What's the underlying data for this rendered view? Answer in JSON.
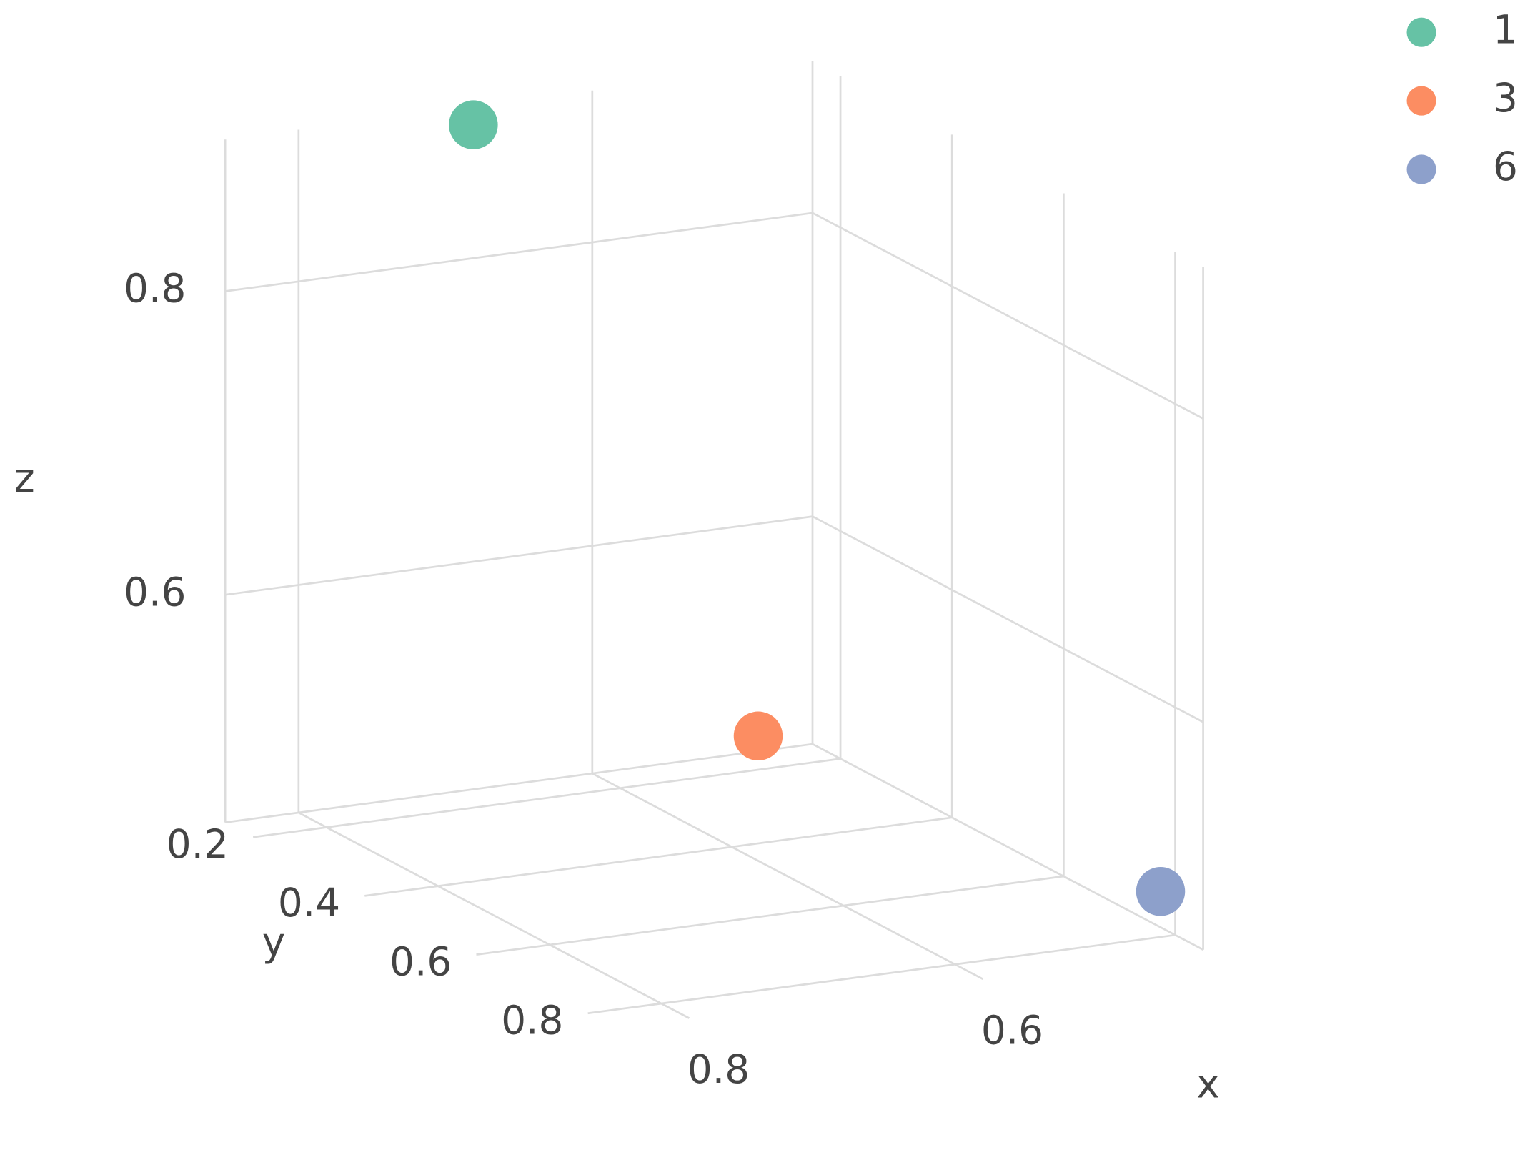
{
  "chart_data": {
    "type": "scatter3d",
    "series": [
      {
        "name": "1",
        "color": "#66c2a5",
        "x": [
          0.7
        ],
        "y": [
          0.2
        ],
        "z": [
          0.9
        ]
      },
      {
        "name": "3",
        "color": "#fc8d62",
        "x": [
          0.62
        ],
        "y": [
          0.5
        ],
        "z": [
          0.545
        ]
      },
      {
        "name": "6",
        "color": "#8da0cb",
        "x": [
          0.46
        ],
        "y": [
          0.8
        ],
        "z": [
          0.48
        ]
      }
    ],
    "x_label": "x",
    "y_label": "y",
    "z_label": "z",
    "xlim": [
      0.45,
      0.85
    ],
    "ylim": [
      0.15,
      0.85
    ],
    "zlim": [
      0.45,
      0.9
    ],
    "xticks": [
      0.6,
      0.8
    ],
    "yticks": [
      0.2,
      0.4,
      0.6,
      0.8
    ],
    "zticks": [
      0.6,
      0.8
    ],
    "grid": true
  }
}
